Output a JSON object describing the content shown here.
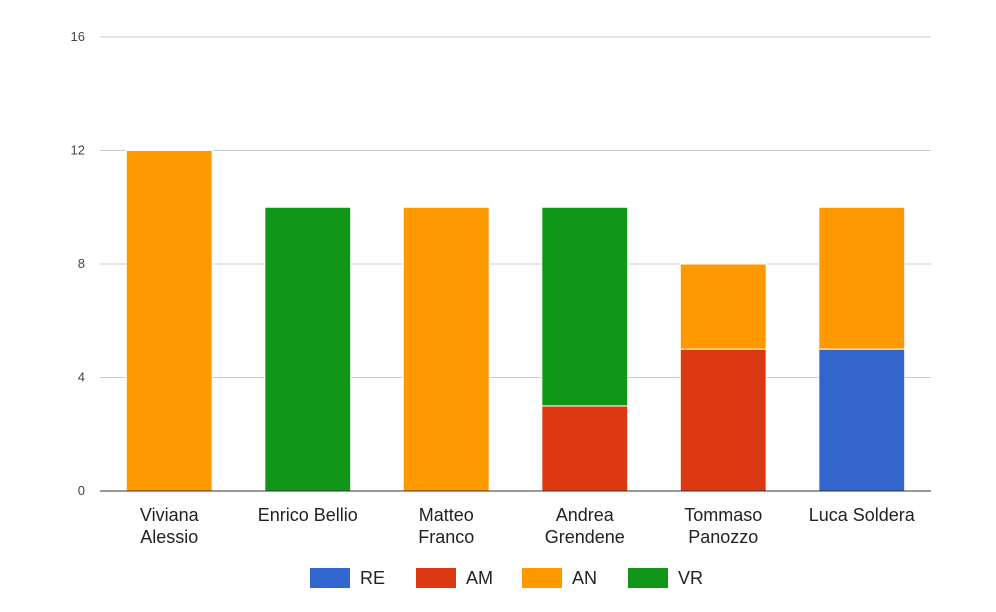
{
  "chart_data": {
    "type": "bar",
    "stacked": true,
    "categories": [
      [
        "Viviana",
        "Alessio"
      ],
      [
        "Enrico Bellio"
      ],
      [
        "Matteo",
        "Franco"
      ],
      [
        "Andrea",
        "Grendene"
      ],
      [
        "Tommaso",
        "Panozzo"
      ],
      [
        "Luca Soldera"
      ]
    ],
    "series": [
      {
        "name": "RE",
        "color": "#3366cc",
        "values": [
          0,
          0,
          0,
          0,
          0,
          5
        ]
      },
      {
        "name": "AM",
        "color": "#dc3912",
        "values": [
          0,
          0,
          0,
          3,
          5,
          0
        ]
      },
      {
        "name": "AN",
        "color": "#ff9900",
        "values": [
          12,
          0,
          10,
          0,
          3,
          5
        ]
      },
      {
        "name": "VR",
        "color": "#109618",
        "values": [
          0,
          10,
          0,
          7,
          0,
          0
        ]
      }
    ],
    "ylim": [
      0,
      16
    ],
    "yticks": [
      "0",
      "4",
      "8",
      "12",
      "16"
    ],
    "ytick_values": [
      0,
      4,
      8,
      12,
      16
    ],
    "grid": true,
    "legend_position": "bottom",
    "title": "",
    "xlabel": "",
    "ylabel": ""
  }
}
